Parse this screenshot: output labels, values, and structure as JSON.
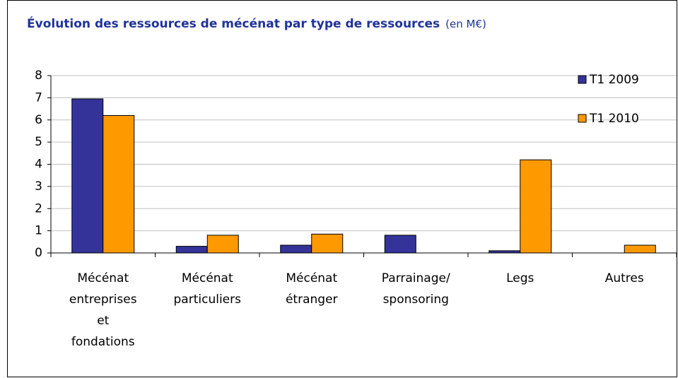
{
  "chart_data": {
    "type": "bar",
    "title": "Évolution des ressources de mécénat par type de ressources",
    "subtitle": "(en M€)",
    "categories": [
      [
        "Mécénat",
        "entreprises",
        "et",
        "fondations"
      ],
      [
        "Mécénat",
        "particuliers"
      ],
      [
        "Mécénat",
        "étranger"
      ],
      [
        "Parrainage/",
        "sponsoring"
      ],
      [
        "Legs"
      ],
      [
        "Autres"
      ]
    ],
    "series": [
      {
        "name": "T1 2009",
        "color": "#333399",
        "values": [
          6.95,
          0.3,
          0.35,
          0.8,
          0.1,
          0
        ]
      },
      {
        "name": "T1 2010",
        "color": "#ff9900",
        "values": [
          6.2,
          0.8,
          0.85,
          0,
          4.2,
          0.35
        ]
      }
    ],
    "ylim": [
      0,
      8
    ],
    "yticks": [
      0,
      1,
      2,
      3,
      4,
      5,
      6,
      7,
      8
    ],
    "grid": true,
    "legend": "upper right"
  }
}
